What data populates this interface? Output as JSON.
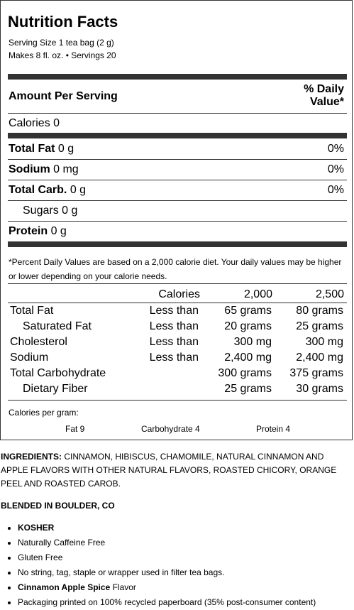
{
  "label": {
    "title": "Nutrition Facts",
    "serving_size": "Serving Size 1 tea bag (2 g)",
    "makes": "Makes 8 fl. oz. • Servings 20",
    "amount_per_serving": "Amount Per Serving",
    "daily_value_line1": "% Daily",
    "daily_value_line2": "Value*",
    "calories": "Calories 0",
    "rows": [
      {
        "name": "Total Fat",
        "amount": " 0 g",
        "pct": "0%"
      },
      {
        "name": "Sodium",
        "amount": " 0 mg",
        "pct": "0%"
      },
      {
        "name": "Total Carb.",
        "amount": " 0 g",
        "pct": "0%"
      },
      {
        "name": "Sugars 0 g",
        "amount": "",
        "pct": ""
      },
      {
        "name": "Protein",
        "amount": " 0 g",
        "pct": ""
      }
    ],
    "footnote": "*Percent Daily Values are based on a 2,000 calorie diet. Your daily values may be higher or lower depending on your calorie needs.",
    "table": {
      "header": [
        "Calories",
        "2,000",
        "2,500"
      ],
      "rows": [
        {
          "name": "Total Fat",
          "cond": "Less than",
          "v1": "65 grams",
          "v2": "80 grams"
        },
        {
          "name": "Saturated Fat",
          "cond": "Less than",
          "v1": "20 grams",
          "v2": "25 grams"
        },
        {
          "name": "Cholesterol",
          "cond": "Less than",
          "v1": "300 mg",
          "v2": "300 mg"
        },
        {
          "name": "Sodium",
          "cond": "Less than",
          "v1": "2,400 mg",
          "v2": "2,400 mg"
        },
        {
          "name": "Total Carbohydrate",
          "cond": "",
          "v1": "300 grams",
          "v2": "375 grams"
        },
        {
          "name": "Dietary Fiber",
          "cond": "",
          "v1": "25 grams",
          "v2": "30 grams"
        }
      ]
    },
    "cal_per_gram": "Calories per gram:",
    "fat_per_gram": "Fat 9",
    "carb_per_gram": "Carbohydrate 4",
    "protein_per_gram": "Protein 4"
  },
  "ingredients_label": "INGREDIENTS:",
  "ingredients_text": " CINNAMON, HIBISCUS, CHAMOMILE, NATURAL CINNAMON AND APPLE FLAVORS WITH OTHER NATURAL FLAVORS, ROASTED CHICORY, ORANGE PEEL AND ROASTED CAROB.",
  "blended": "BLENDED IN BOULDER, CO",
  "bullets": [
    {
      "text": "KOSHER",
      "bold": true
    },
    {
      "text": "Naturally Caffeine Free"
    },
    {
      "text": "Gluten Free"
    },
    {
      "text": "No string, tag, staple or wrapper used in filter tea bags."
    },
    {
      "bold_part": "Cinnamon Apple Spice",
      "text": " Flavor"
    },
    {
      "text": "Packaging printed on 100% recycled paperboard (35% post-consumer content)"
    }
  ]
}
